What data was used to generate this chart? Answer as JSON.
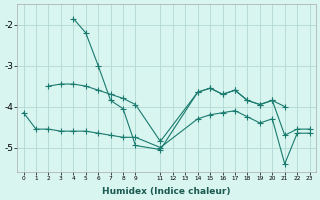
{
  "xlabel": "Humidex (Indice chaleur)",
  "background_color": "#d8f5f0",
  "grid_color": "#b8dcd8",
  "line_color": "#1a7a6e",
  "xlim": [
    -0.5,
    23.5
  ],
  "ylim": [
    -5.6,
    -1.5
  ],
  "yticks": [
    -5,
    -4,
    -3,
    -2
  ],
  "series": [
    {
      "x": [
        4,
        5,
        6,
        7,
        8,
        9,
        11,
        14,
        15,
        16,
        17,
        18,
        19,
        20,
        21
      ],
      "y": [
        -1.85,
        -2.2,
        -3.0,
        -3.85,
        -4.05,
        -4.95,
        -5.05,
        -3.65,
        -3.55,
        -3.7,
        -3.6,
        -3.85,
        -3.95,
        -3.85,
        -4.0
      ]
    },
    {
      "x": [
        2,
        3,
        4,
        5,
        6,
        7,
        8,
        9,
        11,
        14,
        15,
        16,
        17,
        18,
        19,
        20,
        21,
        22,
        23
      ],
      "y": [
        -3.5,
        -3.45,
        -3.45,
        -3.5,
        -3.6,
        -3.7,
        -3.8,
        -3.95,
        -4.85,
        -3.65,
        -3.55,
        -3.7,
        -3.6,
        -3.85,
        -3.95,
        -3.85,
        -4.7,
        -4.55,
        -4.55
      ]
    },
    {
      "x": [
        0,
        1,
        2,
        3,
        4,
        5,
        6,
        7,
        8,
        9,
        11,
        14,
        15,
        16,
        17,
        18,
        19,
        20,
        21,
        22,
        23
      ],
      "y": [
        -4.15,
        -4.55,
        -4.55,
        -4.6,
        -4.6,
        -4.6,
        -4.65,
        -4.7,
        -4.75,
        -4.75,
        -5.0,
        -4.3,
        -4.2,
        -4.15,
        -4.1,
        -4.25,
        -4.4,
        -4.3,
        -5.4,
        -4.65,
        -4.65
      ]
    }
  ]
}
